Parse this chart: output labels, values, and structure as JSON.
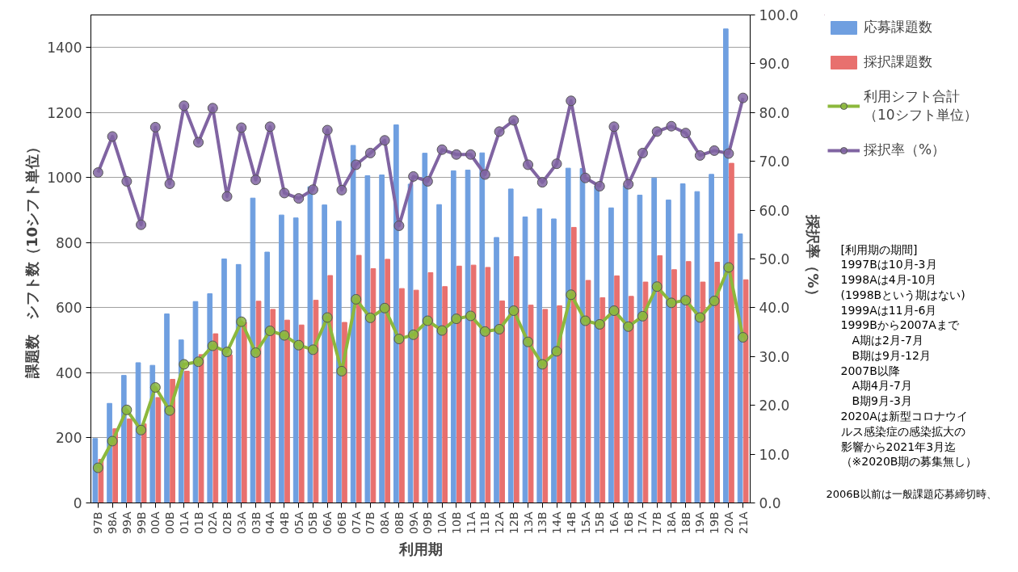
{
  "chart_data": {
    "type": "bar",
    "categories": [
      "97B",
      "98A",
      "99A",
      "99B",
      "00A",
      "00B",
      "01A",
      "01B",
      "02A",
      "02B",
      "03A",
      "03B",
      "04A",
      "04B",
      "05A",
      "05B",
      "06A",
      "06B",
      "07A",
      "07B",
      "08A",
      "08B",
      "09A",
      "09B",
      "10A",
      "10B",
      "11A",
      "11B",
      "12A",
      "12B",
      "13A",
      "13B",
      "14A",
      "14B",
      "15A",
      "15B",
      "16A",
      "16B",
      "17A",
      "17B",
      "18A",
      "18B",
      "19A",
      "19B",
      "20A",
      "21A"
    ],
    "xlabel": "利用期",
    "ylabel": "課題数　シフト数（10シフト単位）",
    "y2label": "採択率（%）",
    "ylim": [
      0,
      1500
    ],
    "yticks": [
      0,
      200,
      400,
      600,
      800,
      1000,
      1200,
      1400
    ],
    "y2lim": [
      0,
      100
    ],
    "y2ticks": [
      {
        "value": 0,
        "label": "0.0"
      },
      {
        "value": 10,
        "label": "10.0"
      },
      {
        "value": 20,
        "label": "20.0"
      },
      {
        "value": 30,
        "label": "30.0"
      },
      {
        "value": 40,
        "label": "40.0"
      },
      {
        "value": 50,
        "label": "50.0"
      },
      {
        "value": 60,
        "label": "60.0"
      },
      {
        "value": 70,
        "label": "70.0"
      },
      {
        "value": 80,
        "label": "80.0"
      },
      {
        "value": 90,
        "label": "90.0"
      },
      {
        "value": 100,
        "label": "100.0"
      }
    ],
    "grid": "y",
    "legend": "top right",
    "marker": "circle",
    "series": [
      {
        "name": "応募課題数",
        "color": "#6f9fe0",
        "values": [
          198,
          306,
          392,
          431,
          423,
          581,
          501,
          619,
          643,
          750,
          733,
          937,
          771,
          885,
          876,
          972,
          916,
          866,
          1099,
          1006,
          1008,
          1162,
          980,
          1075,
          917,
          1021,
          1023,
          1076,
          816,
          965,
          879,
          904,
          873,
          1029,
          1028,
          975,
          907,
          975,
          946,
          999,
          931,
          981,
          957,
          1010,
          1457,
          827
        ]
      },
      {
        "name": "採択課題数",
        "color": "#e8706e",
        "values": [
          134,
          228,
          258,
          243,
          324,
          380,
          405,
          456,
          520,
          455,
          555,
          620,
          595,
          562,
          547,
          623,
          699,
          555,
          761,
          720,
          749,
          659,
          654,
          708,
          665,
          728,
          731,
          724,
          621,
          757,
          608,
          595,
          606,
          847,
          684,
          631,
          698,
          635,
          679,
          760,
          717,
          742,
          679,
          740,
          1044,
          686
        ]
      },
      {
        "name": "利用シフト合計（10シフト単位）",
        "type": "line",
        "color": "#8cb83c",
        "values": [
          108,
          190,
          286,
          224,
          355,
          284,
          426,
          434,
          483,
          464,
          557,
          462,
          529,
          515,
          485,
          471,
          570,
          405,
          626,
          569,
          599,
          504,
          517,
          560,
          530,
          566,
          575,
          527,
          534,
          591,
          495,
          426,
          466,
          640,
          560,
          549,
          591,
          542,
          574,
          665,
          615,
          623,
          570,
          621,
          724,
          509
        ]
      },
      {
        "name": "採択率（%）",
        "type": "line",
        "axis": "y2",
        "color": "#8064a2",
        "values": [
          67.7,
          75.1,
          65.9,
          57.0,
          77.0,
          65.4,
          81.4,
          73.9,
          80.9,
          62.8,
          76.9,
          66.2,
          77.1,
          63.5,
          62.4,
          64.2,
          76.4,
          64.1,
          69.3,
          71.7,
          74.3,
          56.8,
          66.9,
          65.9,
          72.4,
          71.4,
          71.4,
          67.3,
          76.1,
          78.4,
          69.3,
          65.7,
          69.5,
          82.4,
          66.6,
          64.9,
          77.1,
          65.3,
          71.7,
          76.1,
          77.2,
          75.8,
          71.2,
          72.2,
          71.6,
          83.0
        ]
      }
    ],
    "annotations": [
      "[利用期の期間]",
      "1997Bは10月-3月",
      "1998Aは4月-10月",
      "(1998Bという期はない)",
      "1999Aは11月-6月",
      "1999Bから2007Aまで",
      "　A期は2月-7月",
      "　B期は9月-12月",
      "2007B以降",
      "　A期4月-7月",
      "　B期9月-3月",
      "2020Aは新型コロナウイ",
      "ルス感染症の感染拡大の",
      "影響から2021年3月迄",
      "（※2020B期の募集無し）",
      "2006B以前は一般課題応募締切時、"
    ]
  }
}
